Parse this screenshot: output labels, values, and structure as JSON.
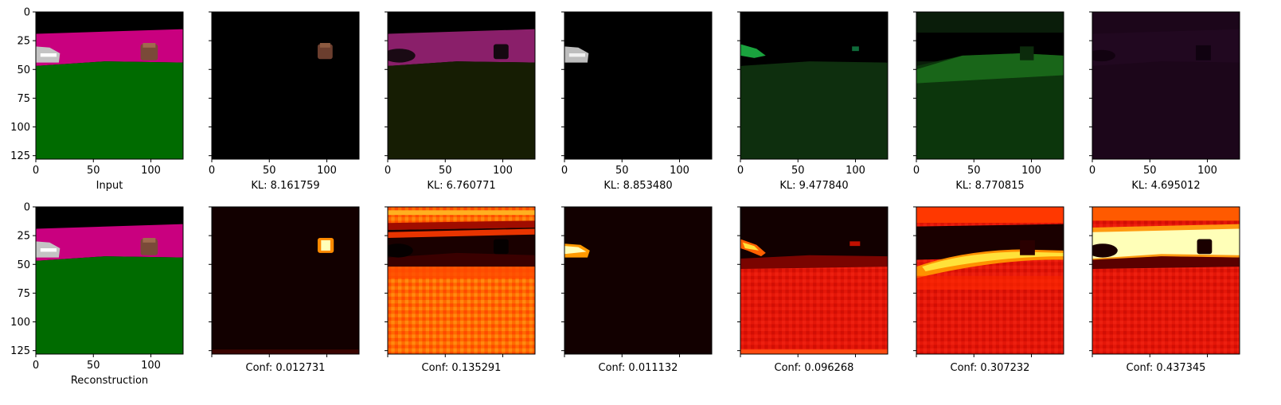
{
  "figure": {
    "top_row": {
      "panels": [
        {
          "key": "input",
          "label": "Input",
          "content": "segmentation"
        },
        {
          "key": "slot1",
          "label": "KL: 8.161759",
          "content": "slot1-mask"
        },
        {
          "key": "slot2",
          "label": "KL: 6.760771",
          "content": "slot2-mask"
        },
        {
          "key": "slot3",
          "label": "KL: 8.853480",
          "content": "slot3-mask"
        },
        {
          "key": "slot4",
          "label": "KL: 9.477840",
          "content": "slot4-mask"
        },
        {
          "key": "slot5",
          "label": "KL: 8.770815",
          "content": "slot5-mask"
        },
        {
          "key": "slot6",
          "label": "KL: 4.695012",
          "content": "slot6-mask"
        }
      ]
    },
    "bottom_row": {
      "panels": [
        {
          "key": "reconstruction",
          "label": "Reconstruction",
          "content": "segmentation"
        },
        {
          "key": "conf1",
          "label": "Conf: 0.012731",
          "content": "conf1-heatmap"
        },
        {
          "key": "conf2",
          "label": "Conf: 0.135291",
          "content": "conf2-heatmap"
        },
        {
          "key": "conf3",
          "label": "Conf: 0.011132",
          "content": "conf3-heatmap"
        },
        {
          "key": "conf4",
          "label": "Conf: 0.096268",
          "content": "conf4-heatmap"
        },
        {
          "key": "conf5",
          "label": "Conf: 0.307232",
          "content": "conf5-heatmap"
        },
        {
          "key": "conf6",
          "label": "Conf: 0.437345",
          "content": "conf6-heatmap"
        }
      ]
    },
    "colors": {
      "magenta": "#c9007f",
      "green": "#006b00",
      "heat_dark": "#120000",
      "heat_red": "#e01408",
      "heat_orange": "#ff5a00",
      "heat_yellow": "#ffe13a",
      "heat_white": "#ffffb8"
    }
  },
  "chart_data": {
    "type": "heatmap",
    "images_per_row": 7,
    "rows": 2,
    "image_size": [
      128,
      128
    ],
    "x_ticks": [
      0,
      50,
      100
    ],
    "y_ticks": [
      0,
      25,
      50,
      75,
      100,
      125
    ],
    "xlim": [
      0,
      128
    ],
    "ylim": [
      128,
      0
    ],
    "kl_values": [
      8.161759,
      6.760771,
      8.85348,
      9.47784,
      8.770815,
      4.695012
    ],
    "conf_values": [
      0.012731,
      0.135291,
      0.011132,
      0.096268,
      0.307232,
      0.437345
    ],
    "colormap": "hot"
  }
}
